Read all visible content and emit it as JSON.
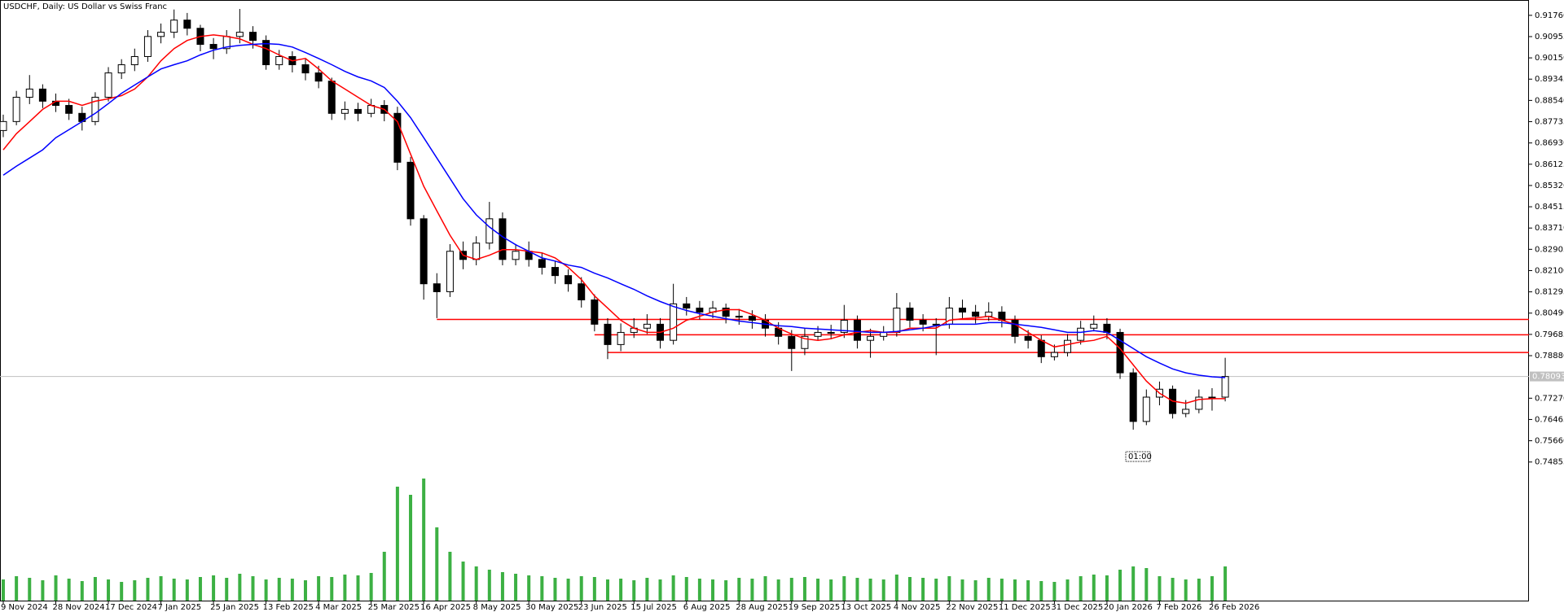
{
  "chart_data": {
    "type": "candlestick",
    "title": "USDCHF, Daily: US Dollar vs Swiss Franc",
    "x": [
      "9 Nov 2024",
      null,
      null,
      null,
      "28 Nov 2024",
      null,
      null,
      null,
      "17 Dec 2024",
      null,
      null,
      null,
      "7 Jan 2025",
      null,
      null,
      null,
      "25 Jan 2025",
      null,
      null,
      null,
      "13 Feb 2025",
      null,
      null,
      null,
      "4 Mar 2025",
      null,
      null,
      null,
      "25 Mar 2025",
      null,
      null,
      null,
      "16 Apr 2025",
      null,
      null,
      null,
      "8 May 2025",
      null,
      null,
      null,
      "30 May 2025",
      null,
      null,
      null,
      "23 Jun 2025",
      null,
      null,
      null,
      "15 Jul 2025",
      null,
      null,
      null,
      "6 Aug 2025",
      null,
      null,
      null,
      "28 Aug 2025",
      null,
      null,
      null,
      "19 Sep 2025",
      null,
      null,
      null,
      "13 Oct 2025",
      null,
      null,
      null,
      "4 Nov 2025",
      null,
      null,
      null,
      "22 Nov 2025",
      null,
      null,
      null,
      "11 Dec 2025",
      null,
      null,
      null,
      "31 Dec 2025",
      null,
      null,
      null,
      "20 Jan 2026",
      null,
      null,
      null,
      "7 Feb 2026",
      null,
      null,
      null,
      "26 Feb 2026",
      null
    ],
    "open": [
      0.874,
      0.8774,
      0.8866,
      0.8897,
      0.8851,
      0.8835,
      0.8805,
      0.8774,
      0.8866,
      0.8958,
      0.8989,
      0.902,
      0.9096,
      0.9112,
      0.9158,
      0.9127,
      0.9066,
      0.905,
      0.9096,
      0.9112,
      0.9081,
      0.8989,
      0.902,
      0.8989,
      0.8958,
      0.8927,
      0.8805,
      0.882,
      0.8805,
      0.8835,
      0.8805,
      0.862,
      0.8406,
      0.816,
      0.813,
      0.8283,
      0.8252,
      0.8314,
      0.8406,
      0.8252,
      0.8283,
      0.8252,
      0.8222,
      0.8191,
      0.816,
      0.8099,
      0.8007,
      0.793,
      0.7976,
      0.7992,
      0.8007,
      0.7946,
      0.8084,
      0.8068,
      0.8053,
      0.8068,
      0.8037,
      0.8037,
      0.8022,
      0.7992,
      0.7961,
      0.7915,
      0.7961,
      0.7976,
      0.7976,
      0.8022,
      0.7946,
      0.7961,
      0.7976,
      0.8068,
      0.8022,
      0.8007,
      0.8007,
      0.8068,
      0.8053,
      0.8037,
      0.8053,
      0.8022,
      0.7961,
      0.7946,
      0.7884,
      0.79,
      0.7946,
      0.7992,
      0.8007,
      0.7976,
      0.7823,
      0.7639,
      0.7731,
      0.7761,
      0.7669,
      0.7685,
      0.7731,
      0.7731
    ],
    "high": [
      0.88,
      0.889,
      0.895,
      0.8915,
      0.888,
      0.886,
      0.883,
      0.8885,
      0.898,
      0.901,
      0.905,
      0.912,
      0.9145,
      0.9198,
      0.9185,
      0.914,
      0.909,
      0.912,
      0.92,
      0.9135,
      0.91,
      0.9045,
      0.904,
      0.901,
      0.8985,
      0.894,
      0.885,
      0.8845,
      0.886,
      0.8855,
      0.883,
      0.864,
      0.842,
      0.82,
      0.831,
      0.832,
      0.834,
      0.847,
      0.843,
      0.831,
      0.832,
      0.8275,
      0.8245,
      0.8215,
      0.8185,
      0.812,
      0.803,
      0.801,
      0.803,
      0.8045,
      0.803,
      0.816,
      0.811,
      0.8095,
      0.8095,
      0.8085,
      0.8065,
      0.806,
      0.8045,
      0.8015,
      0.7985,
      0.799,
      0.8,
      0.8005,
      0.808,
      0.804,
      0.799,
      0.8,
      0.8125,
      0.809,
      0.8045,
      0.803,
      0.811,
      0.81,
      0.808,
      0.809,
      0.8075,
      0.804,
      0.7985,
      0.7965,
      0.793,
      0.797,
      0.802,
      0.804,
      0.803,
      0.799,
      0.784,
      0.776,
      0.779,
      0.7775,
      0.772,
      0.776,
      0.7765,
      0.788
    ],
    "low": [
      0.8715,
      0.876,
      0.884,
      0.8825,
      0.881,
      0.878,
      0.874,
      0.876,
      0.885,
      0.8935,
      0.8965,
      0.9,
      0.907,
      0.909,
      0.91,
      0.904,
      0.901,
      0.903,
      0.907,
      0.905,
      0.897,
      0.897,
      0.896,
      0.893,
      0.89,
      0.878,
      0.878,
      0.8775,
      0.879,
      0.8775,
      0.859,
      0.838,
      0.81,
      0.803,
      0.811,
      0.8215,
      0.823,
      0.829,
      0.823,
      0.823,
      0.8225,
      0.8195,
      0.816,
      0.813,
      0.807,
      0.798,
      0.7875,
      0.7905,
      0.7955,
      0.797,
      0.7915,
      0.793,
      0.804,
      0.8025,
      0.803,
      0.801,
      0.8005,
      0.799,
      0.796,
      0.793,
      0.783,
      0.789,
      0.7945,
      0.795,
      0.7955,
      0.7915,
      0.788,
      0.7945,
      0.796,
      0.7995,
      0.798,
      0.789,
      0.799,
      0.803,
      0.801,
      0.802,
      0.7995,
      0.7935,
      0.7915,
      0.786,
      0.787,
      0.7885,
      0.793,
      0.798,
      0.795,
      0.78,
      0.7608,
      0.7625,
      0.77,
      0.765,
      0.7655,
      0.767,
      0.768,
      0.7715
    ],
    "close": [
      0.8774,
      0.8866,
      0.8897,
      0.8851,
      0.8835,
      0.8805,
      0.8774,
      0.8866,
      0.8958,
      0.8989,
      0.902,
      0.9096,
      0.9112,
      0.9158,
      0.9127,
      0.9066,
      0.905,
      0.9096,
      0.9112,
      0.9081,
      0.8989,
      0.902,
      0.8989,
      0.8958,
      0.8927,
      0.8805,
      0.882,
      0.8805,
      0.8835,
      0.8805,
      0.862,
      0.8406,
      0.816,
      0.813,
      0.8283,
      0.8252,
      0.8314,
      0.8406,
      0.8252,
      0.8283,
      0.8252,
      0.8222,
      0.8191,
      0.816,
      0.8099,
      0.8007,
      0.793,
      0.7976,
      0.7992,
      0.8007,
      0.7946,
      0.8084,
      0.8068,
      0.8053,
      0.8068,
      0.8037,
      0.8037,
      0.8022,
      0.7992,
      0.7961,
      0.7915,
      0.7961,
      0.7976,
      0.7976,
      0.8022,
      0.7946,
      0.7961,
      0.7976,
      0.8068,
      0.8022,
      0.8007,
      0.8007,
      0.8068,
      0.8053,
      0.8037,
      0.8053,
      0.8022,
      0.7961,
      0.7946,
      0.7884,
      0.79,
      0.7946,
      0.7992,
      0.8007,
      0.7976,
      0.7823,
      0.7639,
      0.7731,
      0.7761,
      0.7669,
      0.7685,
      0.7731,
      0.7731,
      0.7809
    ],
    "volume": [
      260,
      300,
      280,
      250,
      310,
      270,
      240,
      290,
      260,
      230,
      250,
      280,
      300,
      270,
      260,
      290,
      310,
      280,
      330,
      300,
      260,
      280,
      270,
      250,
      300,
      290,
      320,
      310,
      340,
      600,
      1400,
      1300,
      1500,
      900,
      600,
      480,
      420,
      380,
      350,
      330,
      310,
      300,
      280,
      270,
      300,
      290,
      260,
      270,
      250,
      280,
      260,
      310,
      290,
      270,
      260,
      250,
      280,
      270,
      300,
      260,
      280,
      290,
      270,
      260,
      300,
      280,
      270,
      260,
      320,
      290,
      280,
      270,
      300,
      260,
      250,
      280,
      270,
      260,
      250,
      240,
      230,
      260,
      300,
      320,
      310,
      380,
      420,
      400,
      300,
      280,
      260,
      270,
      300,
      420
    ],
    "volume_ylim": [
      0,
      2000
    ],
    "volume_color": "#3cb043",
    "ma_lines": [
      {
        "color": "#ff0000",
        "values": [
          0.8667,
          0.8728,
          0.8774,
          0.882,
          0.8851,
          0.8851,
          0.8835,
          0.8851,
          0.886,
          0.8872,
          0.8897,
          0.8943,
          0.9004,
          0.905,
          0.9081,
          0.9096,
          0.9102,
          0.9096,
          0.9087,
          0.9066,
          0.905,
          0.9026,
          0.9004,
          0.9013,
          0.8973,
          0.8928,
          0.8897,
          0.8866,
          0.8835,
          0.882,
          0.8774,
          0.8651,
          0.8529,
          0.8436,
          0.8344,
          0.8268,
          0.8252,
          0.8268,
          0.8289,
          0.8289,
          0.8283,
          0.8277,
          0.8258,
          0.8222,
          0.8176,
          0.8114,
          0.8068,
          0.8022,
          0.7992,
          0.7976,
          0.7976,
          0.7992,
          0.8022,
          0.8037,
          0.8053,
          0.8062,
          0.8062,
          0.8044,
          0.8022,
          0.7992,
          0.797,
          0.7952,
          0.7946,
          0.7952,
          0.7967,
          0.7976,
          0.7983,
          0.7976,
          0.7976,
          0.7992,
          0.7992,
          0.7992,
          0.8022,
          0.8028,
          0.8031,
          0.8037,
          0.8022,
          0.8007,
          0.7976,
          0.7946,
          0.7921,
          0.793,
          0.794,
          0.7946,
          0.7961,
          0.7915,
          0.7853,
          0.7792,
          0.7746,
          0.7716,
          0.7708,
          0.7722,
          0.7725,
          0.7725
        ]
      },
      {
        "color": "#0000ff",
        "values": [
          0.8571,
          0.8605,
          0.8636,
          0.8667,
          0.8713,
          0.8743,
          0.8774,
          0.8805,
          0.8842,
          0.8881,
          0.8912,
          0.8943,
          0.8973,
          0.8989,
          0.9004,
          0.9026,
          0.9044,
          0.9056,
          0.9062,
          0.9066,
          0.9069,
          0.9066,
          0.9056,
          0.9035,
          0.9013,
          0.8989,
          0.8964,
          0.8943,
          0.8928,
          0.8903,
          0.8851,
          0.8789,
          0.8713,
          0.8636,
          0.8559,
          0.8482,
          0.8421,
          0.8375,
          0.8338,
          0.8308,
          0.8283,
          0.8258,
          0.8246,
          0.8231,
          0.8222,
          0.82,
          0.8182,
          0.816,
          0.8139,
          0.8114,
          0.8093,
          0.8074,
          0.8059,
          0.8047,
          0.8037,
          0.8028,
          0.8019,
          0.8013,
          0.8007,
          0.8001,
          0.7998,
          0.7992,
          0.7989,
          0.7986,
          0.7983,
          0.798,
          0.7976,
          0.7976,
          0.798,
          0.7986,
          0.7992,
          0.8001,
          0.8007,
          0.8007,
          0.8007,
          0.8013,
          0.8013,
          0.8007,
          0.8001,
          0.7995,
          0.7986,
          0.7976,
          0.7976,
          0.7983,
          0.7976,
          0.7946,
          0.7915,
          0.7884,
          0.786,
          0.7838,
          0.7823,
          0.7814,
          0.7808,
          0.7805
        ]
      }
    ],
    "levels": [
      {
        "value": 0.8025,
        "start": 33,
        "color": "#ff0000"
      },
      {
        "value": 0.7967,
        "start": 45,
        "color": "#ff0000"
      },
      {
        "value": 0.79,
        "start": 46,
        "color": "#ff0000"
      }
    ],
    "last_price": 0.78093,
    "countdown": "01:00",
    "ylim": [
      0.6961,
      0.9234
    ],
    "yticks": [
      {
        "value": 0.9176,
        "label": "0.91760"
      },
      0.90955,
      {
        "value": 0.9015,
        "label": "0.90150"
      },
      0.89345,
      {
        "value": 0.8854,
        "label": "0.88540"
      },
      0.87735,
      {
        "value": 0.8693,
        "label": "0.86930"
      },
      0.86125,
      {
        "value": 0.8532,
        "label": "0.85320"
      },
      0.84515,
      {
        "value": 0.8371,
        "label": "0.83710"
      },
      0.82905,
      {
        "value": 0.821,
        "label": "0.82100"
      },
      0.81295,
      {
        "value": 0.8049,
        "label": "0.80490"
      },
      0.79685,
      {
        "value": 0.7888,
        "label": "0.78880"
      },
      {
        "value": 0.7727,
        "label": "0.77270"
      },
      0.76465,
      {
        "value": 0.7566,
        "label": "0.75660"
      },
      0.74855
    ]
  }
}
